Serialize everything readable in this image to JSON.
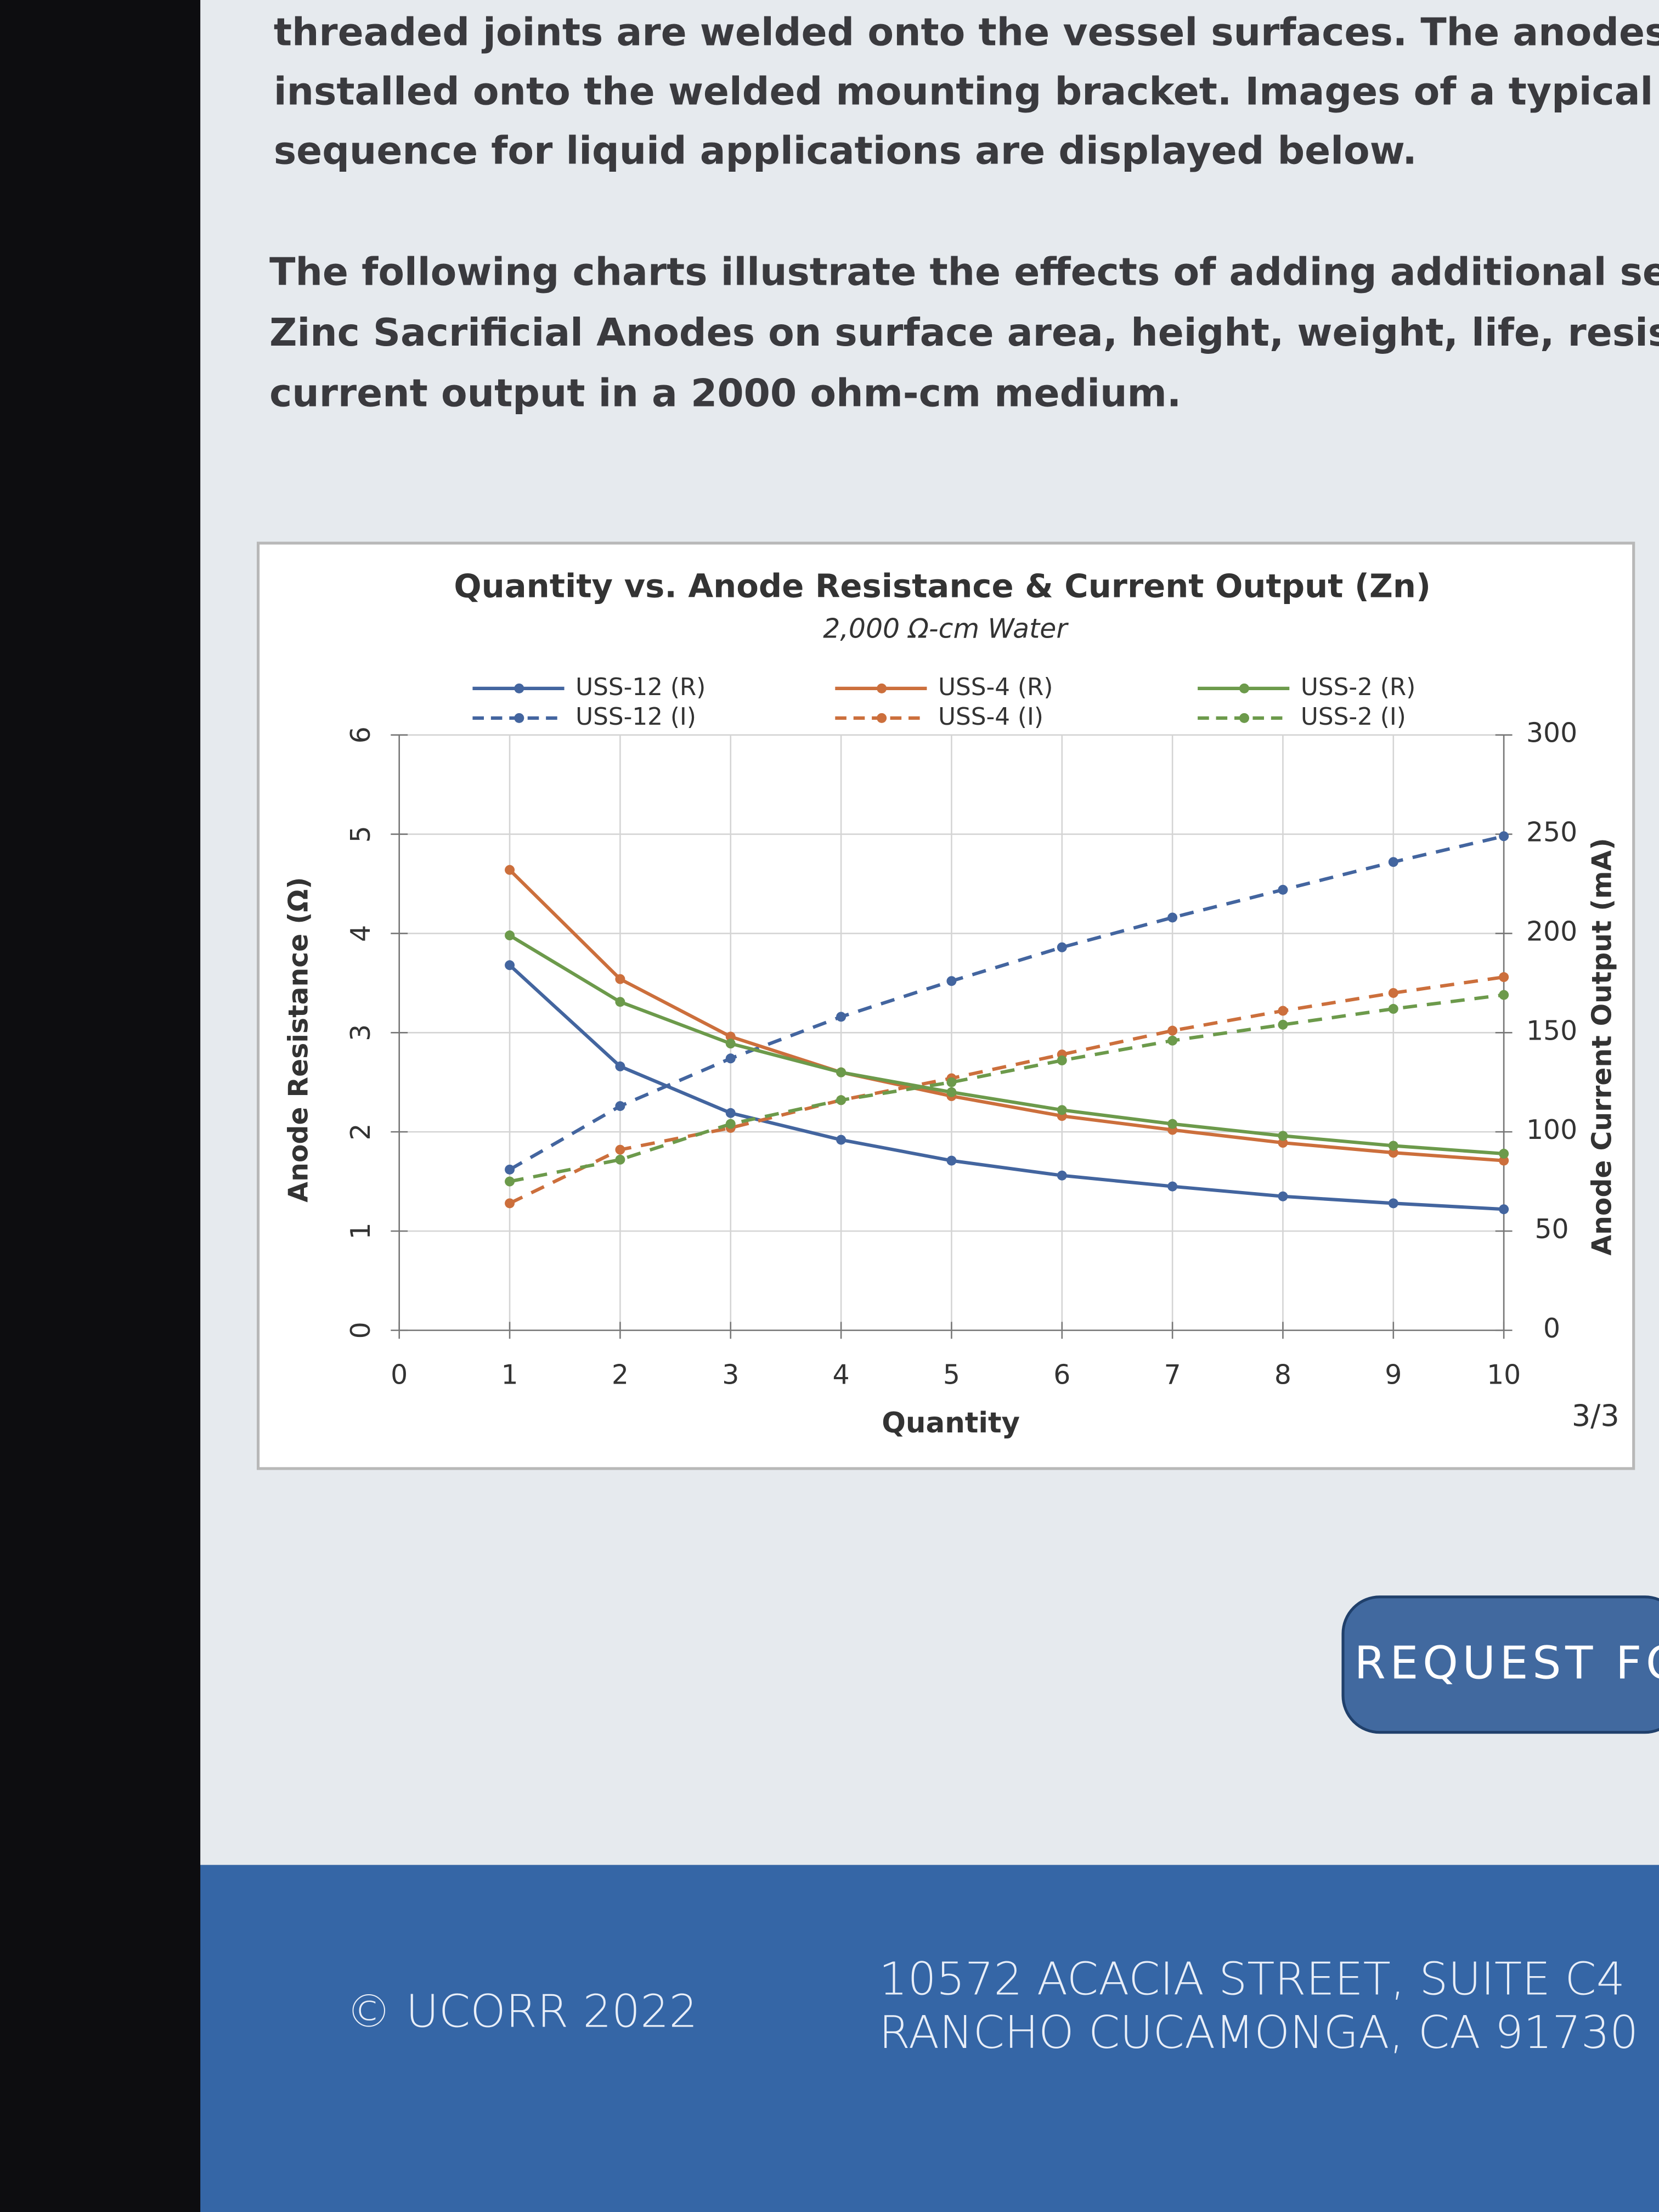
{
  "page": {
    "paragraph_1": [
      "threaded joints are welded onto the vessel surfaces. The anodes are th",
      "installed onto the welded mounting bracket. Images of a typical installati",
      "sequence for liquid applications are displayed below."
    ],
    "paragraph_2": [
      "The following charts illustrate the effects of adding additional segments",
      "Zinc Sacrificial Anodes on surface area, height, weight, life, resistance, a",
      "current output in a 2000 ohm-cm medium."
    ],
    "page_indicator": "3/3",
    "button": "REQUEST FO",
    "copyright": "© UCORR 2022",
    "address": [
      "10572 ACACIA STREET, SUITE C4",
      "RANCHO CUCAMONGA, CA 91730"
    ]
  },
  "chart_data": {
    "type": "line",
    "title": "Quantity vs. Anode Resistance & Current Output (Zn)",
    "subtitle": "2,000 Ω-cm Water",
    "x_label": "Quantity",
    "y_label": "Anode Resistance (Ω)",
    "y2_label": "Anode Current Output (mA)",
    "x": [
      1,
      2,
      3,
      4,
      5,
      6,
      7,
      8,
      9,
      10
    ],
    "xlim": [
      0,
      10
    ],
    "xticks": [
      0,
      1,
      2,
      3,
      4,
      5,
      6,
      7,
      8,
      9,
      10
    ],
    "ylim": [
      0,
      6
    ],
    "yticks": [
      0,
      1,
      2,
      3,
      4,
      5,
      6
    ],
    "y2lim": [
      0,
      300
    ],
    "y2ticks": [
      0,
      50,
      100,
      150,
      200,
      250,
      300
    ],
    "grid": true,
    "series": [
      {
        "name": "USS-12 (R)",
        "color": "#43659f",
        "linestyle": "solid",
        "values": [
          3.68,
          2.66,
          2.19,
          1.92,
          1.71,
          1.56,
          1.45,
          1.35,
          1.28,
          1.22
        ]
      },
      {
        "name": "USS-12 (I)",
        "color": "#43659f",
        "linestyle": "dashed",
        "axis": "y2",
        "values": [
          81,
          113,
          137,
          158,
          176,
          193,
          208,
          222,
          236,
          249
        ]
      },
      {
        "name": "USS-4 (R)",
        "color": "#cc6f3c",
        "linestyle": "solid",
        "values": [
          4.64,
          3.54,
          2.96,
          2.6,
          2.36,
          2.16,
          2.02,
          1.89,
          1.79,
          1.71
        ]
      },
      {
        "name": "USS-4 (I)",
        "color": "#cc6f3c",
        "linestyle": "dashed",
        "axis": "y2",
        "values": [
          64,
          91,
          102,
          116,
          127,
          139,
          151,
          161,
          170,
          178
        ]
      },
      {
        "name": "USS-2 (R)",
        "color": "#6c9a4b",
        "linestyle": "solid",
        "values": [
          3.98,
          3.31,
          2.89,
          2.6,
          2.4,
          2.22,
          2.08,
          1.96,
          1.86,
          1.78
        ]
      },
      {
        "name": "USS-2 (I)",
        "color": "#6c9a4b",
        "linestyle": "dashed",
        "axis": "y2",
        "values": [
          75,
          86,
          104,
          116,
          125,
          136,
          146,
          154,
          162,
          169
        ]
      }
    ]
  }
}
